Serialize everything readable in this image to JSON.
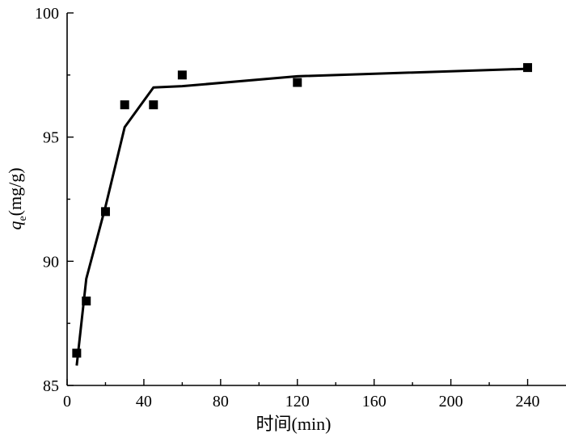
{
  "chart_data": {
    "type": "scatter",
    "xlabel": "时间(min)",
    "ylabel_main": "q",
    "ylabel_sub": "e",
    "ylabel_unit": "(mg/g)",
    "xlim": [
      0,
      260
    ],
    "ylim": [
      85,
      100
    ],
    "xticks": [
      0,
      40,
      80,
      120,
      160,
      200,
      240
    ],
    "yticks": [
      85,
      90,
      95,
      100
    ],
    "grid": false,
    "series": [
      {
        "kind": "markers",
        "marker": "square",
        "color": "#000000",
        "x": [
          5,
          10,
          20,
          30,
          45,
          60,
          120,
          240
        ],
        "y": [
          86.3,
          88.4,
          92.0,
          96.3,
          96.3,
          97.5,
          97.2,
          97.8
        ]
      },
      {
        "kind": "fit-line",
        "color": "#000000",
        "x": [
          5,
          10,
          20,
          30,
          45,
          60,
          120,
          240
        ],
        "y": [
          85.8,
          89.3,
          92.2,
          95.4,
          97.0,
          97.05,
          97.45,
          97.75
        ]
      }
    ]
  }
}
